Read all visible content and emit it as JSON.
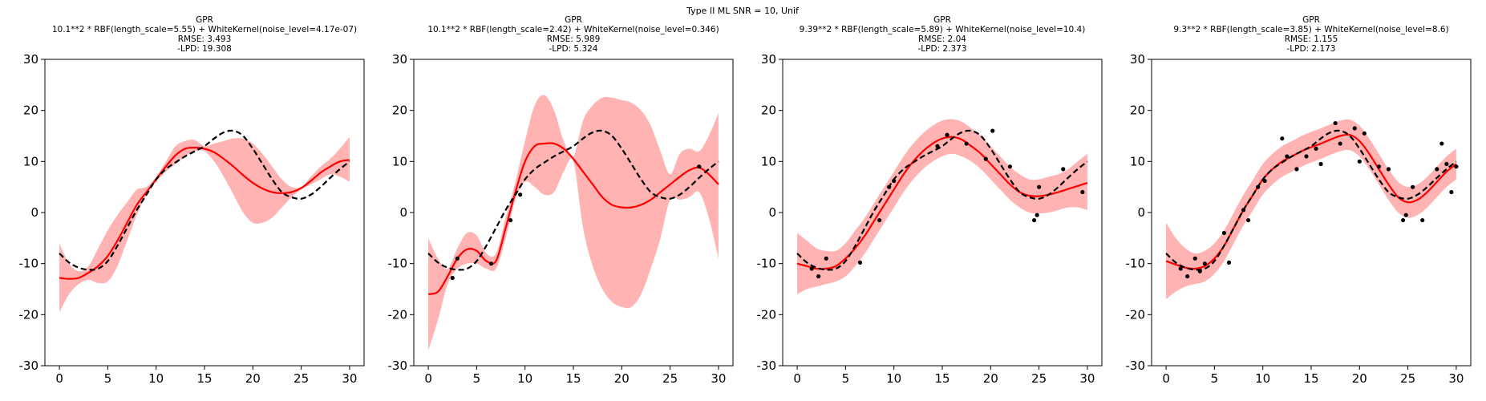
{
  "figure_title": "Type II ML SNR = 10, Unif",
  "colors": {
    "gp_mean": "#ff0000",
    "gp_band": "#ff9999",
    "true_function": "#000000",
    "observations": "#000000",
    "axes": "#000000",
    "background": "#ffffff"
  },
  "chart_data": [
    {
      "type": "line",
      "title_lines": [
        "GPR",
        "10.1**2 * RBF(length_scale=5.55) + WhiteKernel(noise_level=4.17e-07)",
        "RMSE: 3.493",
        "-LPD: 19.308"
      ],
      "xlim": [
        -1.5,
        31.5
      ],
      "ylim": [
        -30,
        30
      ],
      "xticks": [
        0,
        5,
        10,
        15,
        20,
        25,
        30
      ],
      "yticks": [
        -30,
        -20,
        -10,
        0,
        10,
        20,
        30
      ],
      "true_function": {
        "x": [
          0,
          1,
          2,
          3,
          4,
          5,
          6,
          7,
          8,
          9,
          10,
          11,
          12,
          13,
          14,
          15,
          16,
          17,
          18,
          19,
          20,
          21,
          22,
          23,
          24,
          25,
          26,
          27,
          28,
          29,
          30
        ],
        "y": [
          -8,
          -9.8,
          -10.8,
          -11.2,
          -11,
          -9.5,
          -6.5,
          -3,
          0.5,
          3.5,
          6.5,
          8.5,
          9.8,
          11,
          12,
          13,
          14.5,
          15.7,
          16,
          15,
          12.5,
          9.5,
          6.5,
          4,
          3,
          2.7,
          3.5,
          5,
          6.8,
          8.5,
          10
        ]
      },
      "mean": {
        "x": [
          0,
          1,
          2,
          3,
          4,
          5,
          6,
          7,
          8,
          9,
          10,
          11,
          12,
          13,
          14,
          15,
          16,
          17,
          18,
          19,
          20,
          21,
          22,
          23,
          24,
          25,
          26,
          27,
          28,
          29,
          30
        ],
        "y": [
          -12.8,
          -13,
          -12.8,
          -11.8,
          -10.5,
          -8.5,
          -5.5,
          -2,
          1.5,
          4,
          6.5,
          9,
          11.2,
          12.5,
          12.7,
          12.5,
          11.8,
          10.5,
          9,
          7.3,
          5.8,
          4.7,
          4,
          3.8,
          4,
          4.8,
          6.2,
          7.8,
          9,
          10,
          10.3
        ]
      },
      "lower": [
        -19.5,
        -16,
        -14,
        -13.2,
        -13.8,
        -13.5,
        -10.5,
        -5.5,
        -0.5,
        3.5,
        6,
        8,
        9.5,
        11,
        12,
        12,
        10,
        7,
        3.5,
        0,
        -2,
        -2,
        -1,
        1,
        3,
        4.5,
        5.5,
        6.5,
        7.5,
        7,
        6
      ],
      "upper": [
        -6,
        -10,
        -11.5,
        -10.5,
        -7,
        -3.5,
        -0.5,
        2,
        4.5,
        5,
        7,
        10,
        13,
        14,
        14.2,
        13,
        13.5,
        14,
        14.5,
        14.5,
        13.5,
        11.5,
        9,
        6.5,
        5,
        5,
        7,
        9,
        10.5,
        12.5,
        14.8
      ]
    },
    {
      "type": "line",
      "title_lines": [
        "GPR",
        "10.1**2 * RBF(length_scale=2.42) + WhiteKernel(noise_level=0.346)",
        "RMSE: 5.989",
        "-LPD: 5.324"
      ],
      "xlim": [
        -1.5,
        31.5
      ],
      "ylim": [
        -30,
        30
      ],
      "xticks": [
        0,
        5,
        10,
        15,
        20,
        25,
        30
      ],
      "yticks": [
        -30,
        -20,
        -10,
        0,
        10,
        20,
        30
      ],
      "observations": {
        "x": [
          2.5,
          3,
          6.5,
          8.5,
          9.5,
          28
        ],
        "y": [
          -12.8,
          -9,
          -10,
          -1.5,
          3.5,
          9
        ]
      },
      "true_function": {
        "x": [
          0,
          1,
          2,
          3,
          4,
          5,
          6,
          7,
          8,
          9,
          10,
          11,
          12,
          13,
          14,
          15,
          16,
          17,
          18,
          19,
          20,
          21,
          22,
          23,
          24,
          25,
          26,
          27,
          28,
          29,
          30
        ],
        "y": [
          -8,
          -9.8,
          -10.8,
          -11.2,
          -11,
          -9.5,
          -6.5,
          -3,
          0.5,
          3.5,
          6.5,
          8.5,
          9.8,
          11,
          12,
          13,
          14.5,
          15.7,
          16,
          15,
          12.5,
          9.5,
          6.5,
          4,
          3,
          2.7,
          3.5,
          5,
          6.8,
          8.5,
          10
        ]
      },
      "mean": {
        "x": [
          0,
          1,
          2,
          3,
          4,
          5,
          6,
          7,
          8,
          9,
          10,
          11,
          12,
          13,
          14,
          15,
          16,
          17,
          18,
          19,
          20,
          21,
          22,
          23,
          24,
          25,
          26,
          27,
          28,
          29,
          30
        ],
        "y": [
          -16,
          -15.5,
          -12.5,
          -9,
          -7.2,
          -7.5,
          -9.5,
          -9.5,
          -3,
          4,
          10,
          13,
          13.5,
          13.5,
          12.5,
          10.5,
          8,
          5.5,
          3,
          1.5,
          1,
          1,
          1.5,
          2.5,
          4,
          5.5,
          7,
          8.3,
          8.8,
          7.5,
          5.5
        ]
      },
      "lower": [
        -27,
        -21,
        -14,
        -11,
        -10,
        -10,
        -11,
        -11,
        -5,
        2.5,
        6,
        5,
        3.5,
        4,
        8,
        10,
        -3,
        -10.5,
        -15,
        -17.5,
        -18.5,
        -18.5,
        -16,
        -11,
        -5,
        2.5,
        2.5,
        3,
        4,
        -1,
        -9
      ],
      "upper": [
        -5,
        -9,
        -11,
        -7,
        -4,
        -4.5,
        -8,
        -8,
        -1,
        6,
        14,
        21,
        23,
        20,
        14,
        11,
        18,
        21,
        22.5,
        22.5,
        22,
        21.5,
        20,
        17,
        12,
        7.5,
        11.5,
        12.5,
        12,
        15,
        19.5
      ]
    },
    {
      "type": "line",
      "title_lines": [
        "GPR",
        "9.39**2 * RBF(length_scale=5.89) + WhiteKernel(noise_level=10.4)",
        "RMSE: 2.04",
        "-LPD: 2.373"
      ],
      "xlim": [
        -1.5,
        31.5
      ],
      "ylim": [
        -30,
        30
      ],
      "xticks": [
        0,
        5,
        10,
        15,
        20,
        25,
        30
      ],
      "yticks": [
        -30,
        -20,
        -10,
        0,
        10,
        20,
        30
      ],
      "observations": {
        "x": [
          1.5,
          2.2,
          3,
          6.5,
          8.5,
          9.5,
          10,
          14.5,
          15.5,
          17.5,
          19.5,
          20.2,
          22,
          24.5,
          24.8,
          25,
          27.5,
          29.5
        ],
        "y": [
          -11,
          -12.5,
          -9,
          -9.8,
          -1.5,
          5,
          6.2,
          13,
          15.2,
          13.5,
          10.5,
          16,
          9,
          -1.5,
          -0.5,
          5,
          8.5,
          4
        ]
      },
      "true_function": {
        "x": [
          0,
          1,
          2,
          3,
          4,
          5,
          6,
          7,
          8,
          9,
          10,
          11,
          12,
          13,
          14,
          15,
          16,
          17,
          18,
          19,
          20,
          21,
          22,
          23,
          24,
          25,
          26,
          27,
          28,
          29,
          30
        ],
        "y": [
          -8,
          -9.8,
          -10.8,
          -11.2,
          -11,
          -9.5,
          -6.5,
          -3,
          0.5,
          3.5,
          6.5,
          8.5,
          9.8,
          11,
          12,
          13,
          14.5,
          15.7,
          16,
          15,
          12.5,
          9.5,
          6.5,
          4,
          3,
          2.7,
          3.5,
          5,
          6.8,
          8.5,
          10
        ]
      },
      "mean": {
        "x": [
          0,
          1,
          2,
          3,
          4,
          5,
          6,
          7,
          8,
          9,
          10,
          11,
          12,
          13,
          14,
          15,
          16,
          17,
          18,
          19,
          20,
          21,
          22,
          23,
          24,
          25,
          26,
          27,
          28,
          29,
          30
        ],
        "y": [
          -10,
          -10.5,
          -11,
          -11,
          -10.5,
          -9,
          -7,
          -4.5,
          -1.5,
          1.5,
          4.5,
          7.5,
          10,
          12,
          13.5,
          14.5,
          14.8,
          14.3,
          13,
          11.5,
          9.5,
          7.5,
          5.5,
          4,
          3.3,
          3.2,
          3.5,
          4,
          4.6,
          5.2,
          5.8
        ]
      },
      "lower": [
        -16,
        -15,
        -14.5,
        -14,
        -13.5,
        -12.5,
        -10.5,
        -8,
        -5,
        -2,
        1,
        4,
        6.5,
        8.5,
        10,
        11,
        11.5,
        11,
        10,
        8.5,
        6.5,
        4.5,
        2.5,
        1,
        0,
        -0.2,
        0,
        0.5,
        1,
        1,
        0.5
      ],
      "upper": [
        -4,
        -5.5,
        -7,
        -7.5,
        -7.5,
        -6,
        -3.5,
        -1,
        2,
        5,
        8,
        11,
        13.5,
        15.5,
        17,
        18,
        18.3,
        17.8,
        16.5,
        15,
        13,
        11,
        9,
        7.5,
        6.5,
        6.5,
        7,
        7.5,
        8.5,
        10,
        11.5
      ]
    },
    {
      "type": "line",
      "title_lines": [
        "GPR",
        "9.3**2 * RBF(length_scale=3.85) + WhiteKernel(noise_level=8.6)",
        "RMSE: 1.155",
        "-LPD: 2.173"
      ],
      "xlim": [
        -1.5,
        31.5
      ],
      "ylim": [
        -30,
        30
      ],
      "xticks": [
        0,
        5,
        10,
        15,
        20,
        25,
        30
      ],
      "yticks": [
        -30,
        -20,
        -10,
        0,
        10,
        20,
        30
      ],
      "observations": {
        "x": [
          1.5,
          2.2,
          3,
          3.5,
          4,
          6,
          6.5,
          8,
          8.5,
          9.5,
          10.2,
          12,
          12.5,
          13.5,
          14.5,
          15.5,
          16,
          17.5,
          18,
          19.5,
          20,
          20.5,
          22,
          23,
          24.5,
          24.8,
          25.5,
          26.5,
          28,
          28.5,
          29,
          29.5,
          30
        ],
        "y": [
          -11,
          -12.5,
          -9,
          -11.5,
          -10,
          -4,
          -9.8,
          0.5,
          -1.5,
          5,
          6.2,
          14.5,
          11,
          8.5,
          11,
          12.5,
          9.5,
          17.5,
          13.5,
          16.5,
          10,
          15.5,
          9,
          8.5,
          -1.5,
          -0.5,
          5,
          -1.5,
          8.5,
          13.5,
          9.5,
          4,
          9
        ]
      },
      "true_function": {
        "x": [
          0,
          1,
          2,
          3,
          4,
          5,
          6,
          7,
          8,
          9,
          10,
          11,
          12,
          13,
          14,
          15,
          16,
          17,
          18,
          19,
          20,
          21,
          22,
          23,
          24,
          25,
          26,
          27,
          28,
          29,
          30
        ],
        "y": [
          -8,
          -9.8,
          -10.8,
          -11.2,
          -11,
          -9.5,
          -6.5,
          -3,
          0.5,
          3.5,
          6.5,
          8.5,
          9.8,
          11,
          12,
          13,
          14.5,
          15.7,
          16,
          15,
          12.5,
          9.5,
          6.5,
          4,
          3,
          2.7,
          3.5,
          5,
          6.8,
          8.5,
          10
        ]
      },
      "mean": {
        "x": [
          0,
          1,
          2,
          3,
          4,
          5,
          6,
          7,
          8,
          9,
          10,
          11,
          12,
          13,
          14,
          15,
          16,
          17,
          18,
          19,
          20,
          21,
          22,
          23,
          24,
          25,
          26,
          27,
          28,
          29,
          30
        ],
        "y": [
          -9.5,
          -10.2,
          -10.8,
          -11,
          -10.5,
          -9,
          -6.5,
          -3,
          0.5,
          3.5,
          6.5,
          8.5,
          10,
          11,
          12,
          12.8,
          13.5,
          14.3,
          15,
          15.2,
          14,
          11.5,
          8.5,
          5.5,
          3,
          2,
          2.5,
          4,
          6,
          8,
          9.5
        ]
      },
      "lower": [
        -17,
        -15.5,
        -14.5,
        -14,
        -13.5,
        -12,
        -9.5,
        -6,
        -2.5,
        0.5,
        3.5,
        5.5,
        7,
        8,
        9,
        9.8,
        10.5,
        11.3,
        12,
        12.2,
        11,
        8.5,
        5.5,
        2.5,
        0,
        -1,
        -0.5,
        1,
        3,
        5,
        6.5
      ],
      "upper": [
        -2,
        -5,
        -7,
        -8,
        -7.5,
        -6,
        -3.5,
        0,
        3.5,
        6.5,
        9.5,
        11.5,
        13,
        14,
        15,
        15.8,
        16.5,
        17.3,
        18,
        18.2,
        17,
        14.5,
        11.5,
        8.5,
        6,
        5,
        5.5,
        7,
        9,
        11,
        12.5
      ]
    }
  ]
}
